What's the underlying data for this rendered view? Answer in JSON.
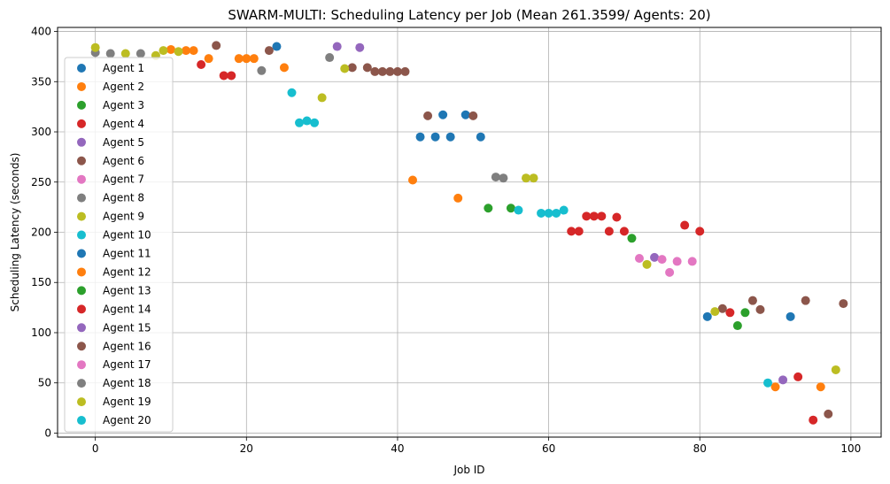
{
  "chart_data": {
    "type": "scatter",
    "title": "SWARM-MULTI: Scheduling Latency per Job (Mean 261.3599/ Agents: 20)",
    "xlabel": "Job ID",
    "ylabel": "Scheduling Latency (seconds)",
    "xlim": [
      -5,
      104
    ],
    "ylim": [
      -4,
      404
    ],
    "xticks": [
      0,
      20,
      40,
      60,
      80,
      100
    ],
    "yticks": [
      0,
      50,
      100,
      150,
      200,
      250,
      300,
      350,
      400
    ],
    "grid": true,
    "legend_position": "left",
    "series": [
      {
        "name": "Agent 1",
        "color": "#1f77b4",
        "points": [
          [
            24,
            385
          ],
          [
            43,
            295
          ],
          [
            45,
            295
          ],
          [
            46,
            317
          ],
          [
            47,
            295
          ],
          [
            49,
            317
          ],
          [
            51,
            295
          ],
          [
            81,
            116
          ],
          [
            92,
            116
          ]
        ]
      },
      {
        "name": "Agent 2",
        "color": "#ff7f0e",
        "points": [
          [
            10,
            382
          ],
          [
            12,
            381
          ],
          [
            13,
            381
          ],
          [
            15,
            373
          ],
          [
            19,
            373
          ],
          [
            20,
            373
          ],
          [
            21,
            373
          ],
          [
            25,
            364
          ],
          [
            42,
            252
          ],
          [
            48,
            234
          ],
          [
            90,
            46
          ],
          [
            96,
            46
          ]
        ]
      },
      {
        "name": "Agent 3",
        "color": "#2ca02c",
        "points": [
          [
            52,
            224
          ],
          [
            55,
            224
          ],
          [
            71,
            194
          ],
          [
            85,
            107
          ],
          [
            86,
            120
          ]
        ]
      },
      {
        "name": "Agent 4",
        "color": "#d62728",
        "points": [
          [
            14,
            367
          ],
          [
            17,
            356
          ],
          [
            18,
            356
          ],
          [
            63,
            201
          ],
          [
            64,
            201
          ],
          [
            65,
            216
          ],
          [
            66,
            216
          ],
          [
            67,
            216
          ],
          [
            68,
            201
          ],
          [
            69,
            215
          ],
          [
            70,
            201
          ],
          [
            78,
            207
          ],
          [
            80,
            201
          ],
          [
            84,
            120
          ],
          [
            93,
            56
          ],
          [
            95,
            13
          ]
        ]
      },
      {
        "name": "Agent 5",
        "color": "#9467bd",
        "points": [
          [
            32,
            385
          ],
          [
            35,
            384
          ],
          [
            74,
            175
          ],
          [
            91,
            53
          ]
        ]
      },
      {
        "name": "Agent 6",
        "color": "#8c564b",
        "points": [
          [
            16,
            386
          ],
          [
            23,
            381
          ],
          [
            34,
            364
          ],
          [
            36,
            364
          ],
          [
            37,
            360
          ],
          [
            38,
            360
          ],
          [
            39,
            360
          ],
          [
            40,
            360
          ],
          [
            41,
            360
          ],
          [
            44,
            316
          ],
          [
            50,
            316
          ],
          [
            83,
            124
          ],
          [
            87,
            132
          ],
          [
            88,
            123
          ],
          [
            94,
            132
          ],
          [
            97,
            19
          ],
          [
            99,
            129
          ]
        ]
      },
      {
        "name": "Agent 7",
        "color": "#e377c2",
        "points": [
          [
            72,
            174
          ],
          [
            75,
            173
          ],
          [
            76,
            160
          ],
          [
            77,
            171
          ],
          [
            79,
            171
          ]
        ]
      },
      {
        "name": "Agent 8",
        "color": "#7f7f7f",
        "points": [
          [
            0,
            379
          ],
          [
            2,
            378
          ],
          [
            6,
            378
          ],
          [
            22,
            361
          ],
          [
            31,
            374
          ],
          [
            53,
            255
          ],
          [
            54,
            254
          ]
        ]
      },
      {
        "name": "Agent 9",
        "color": "#bcbd22",
        "points": [
          [
            0,
            384
          ],
          [
            4,
            378
          ],
          [
            8,
            376
          ],
          [
            9,
            381
          ],
          [
            11,
            380
          ],
          [
            30,
            334
          ],
          [
            33,
            363
          ],
          [
            57,
            254
          ],
          [
            58,
            254
          ],
          [
            73,
            168
          ],
          [
            82,
            121
          ],
          [
            98,
            63
          ]
        ]
      },
      {
        "name": "Agent 10",
        "color": "#17becf",
        "points": [
          [
            26,
            339
          ],
          [
            27,
            309
          ],
          [
            28,
            311
          ],
          [
            29,
            309
          ],
          [
            56,
            222
          ],
          [
            59,
            219
          ],
          [
            60,
            219
          ],
          [
            61,
            219
          ],
          [
            62,
            222
          ],
          [
            89,
            50
          ]
        ]
      },
      {
        "name": "Agent 11",
        "color": "#1f77b4",
        "points": []
      },
      {
        "name": "Agent 12",
        "color": "#ff7f0e",
        "points": []
      },
      {
        "name": "Agent 13",
        "color": "#2ca02c",
        "points": []
      },
      {
        "name": "Agent 14",
        "color": "#d62728",
        "points": []
      },
      {
        "name": "Agent 15",
        "color": "#9467bd",
        "points": []
      },
      {
        "name": "Agent 16",
        "color": "#8c564b",
        "points": []
      },
      {
        "name": "Agent 17",
        "color": "#e377c2",
        "points": []
      },
      {
        "name": "Agent 18",
        "color": "#7f7f7f",
        "points": []
      },
      {
        "name": "Agent 19",
        "color": "#bcbd22",
        "points": []
      },
      {
        "name": "Agent 20",
        "color": "#17becf",
        "points": []
      }
    ]
  }
}
